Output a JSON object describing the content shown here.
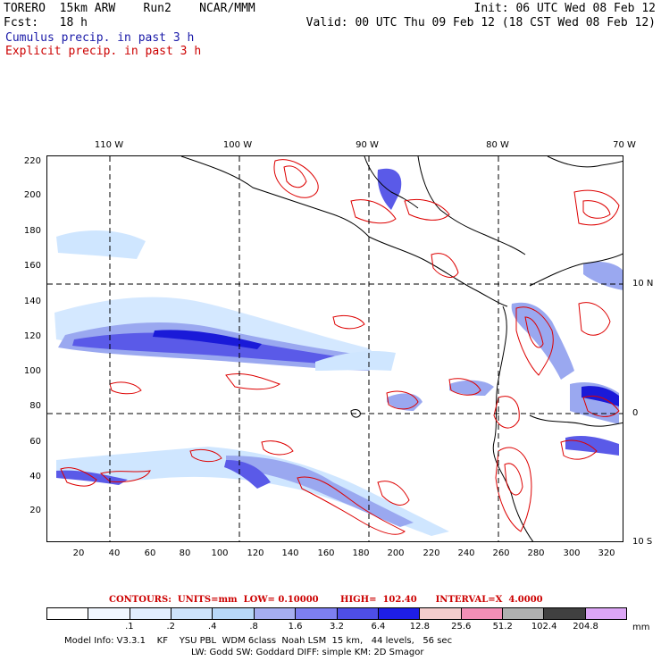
{
  "header": {
    "line1_left": "TORERO  15km ARW    Run2    NCAR/MMM",
    "line1_right": "Init: 06 UTC Wed 08 Feb 12",
    "line2_left": "Fcst:   18 h",
    "line2_right": "Valid: 00 UTC Thu 09 Feb 12 (18 CST Wed 08 Feb 12)",
    "legend_cumulus": "Cumulus precip. in past 3 h",
    "legend_explicit": "Explicit precip. in past 3 h"
  },
  "map": {
    "lon_labels": [
      "110 W",
      "100 W",
      "90 W",
      "80 W",
      "70 W"
    ],
    "lat_labels_right": [
      "10 N",
      "0",
      "10 S"
    ],
    "y_ticks": [
      "220",
      "200",
      "180",
      "160",
      "140",
      "120",
      "100",
      "80",
      "60",
      "40",
      "20"
    ],
    "x_ticks": [
      "20",
      "40",
      "60",
      "80",
      "100",
      "120",
      "140",
      "160",
      "180",
      "200",
      "220",
      "240",
      "260",
      "280",
      "300",
      "320"
    ],
    "colors": {
      "coast": "#000000",
      "grid": "#000000",
      "explicit_contour": "#dd0000",
      "cumulus_light": "#cfe6ff",
      "cumulus_mid": "#9aa8f0",
      "cumulus_strong": "#5a5ae8",
      "cumulus_max": "#1a1ad8"
    }
  },
  "footer": {
    "contours": "CONTOURS:  UNITS=mm  LOW= 0.10000       HIGH=  102.40      INTERVAL=X  4.0000",
    "colorbar_labels": [
      ".1",
      ".2",
      ".4",
      ".8",
      "1.6",
      "3.2",
      "6.4",
      "12.8",
      "25.6",
      "51.2",
      "102.4",
      "204.8"
    ],
    "colorbar_unit": "mm",
    "colorbar_colors": [
      "#ffffff",
      "#f1f7ff",
      "#e2eeff",
      "#cde3fb",
      "#b8d8f8",
      "#a6aef0",
      "#7d7ff0",
      "#4e4ee6",
      "#1e1ee6",
      "#f4cccc",
      "#f28fb6",
      "#b0b0b0",
      "#404040",
      "#dca6f6"
    ],
    "model_info_line1": "Model Info: V3.3.1    KF    YSU PBL  WDM 6class  Noah LSM  15 km,   44 levels,   56 sec",
    "model_info_line2": "LW: Godd SW: Goddard DIFF: simple KM: 2D Smagor"
  }
}
